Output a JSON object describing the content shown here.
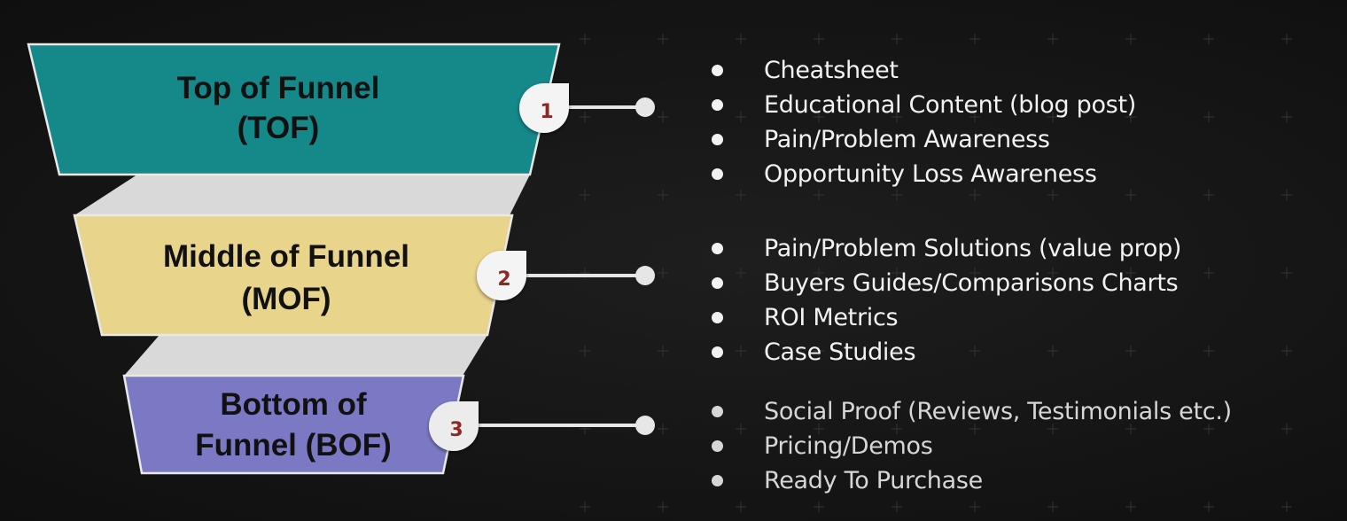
{
  "funnel": {
    "stages": [
      {
        "number": "1",
        "title_lines": [
          "Top of Funnel",
          "(TOF)"
        ],
        "color": "#15888a",
        "items": [
          "Cheatsheet",
          "Educational Content (blog post)",
          "Pain/Problem Awareness",
          "Opportunity Loss Awareness"
        ]
      },
      {
        "number": "2",
        "title_lines": [
          "Middle of Funnel",
          "(MOF)"
        ],
        "color": "#e9d48c",
        "items": [
          "Pain/Problem Solutions (value prop)",
          "Buyers Guides/Comparisons Charts",
          "ROI Metrics",
          "Case Studies"
        ]
      },
      {
        "number": "3",
        "title_lines": [
          "Bottom of",
          "Funnel (BOF)"
        ],
        "color": "#7b79c4",
        "items": [
          "Social Proof (Reviews, Testimonials etc.)",
          "Pricing/Demos",
          "Ready To Purchase"
        ]
      }
    ],
    "connector_color": "#e6e6e6",
    "outline_color": "#e9e9e9",
    "ribbon_color": "#d9d9d9"
  }
}
